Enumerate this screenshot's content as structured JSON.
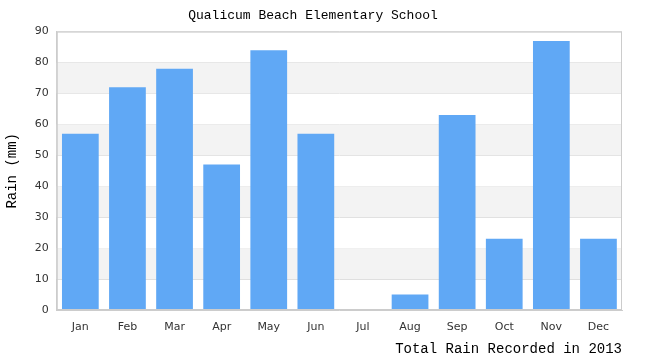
{
  "chart_data": {
    "type": "bar",
    "title": "Qualicum Beach Elementary School",
    "y_label": "Rain (mm)",
    "x_label": "Total Rain Recorded in 2013",
    "categories": [
      "Jan",
      "Feb",
      "Mar",
      "Apr",
      "May",
      "Jun",
      "Jul",
      "Aug",
      "Sep",
      "Oct",
      "Nov",
      "Dec"
    ],
    "values": [
      57,
      72,
      78,
      47,
      84,
      57,
      0,
      5,
      63,
      23,
      87,
      23
    ],
    "color": "#60a8f5",
    "ylim": [
      0,
      90
    ],
    "yticks": [
      0,
      10,
      20,
      30,
      40,
      50,
      60,
      70,
      80,
      90
    ],
    "grid": true
  }
}
